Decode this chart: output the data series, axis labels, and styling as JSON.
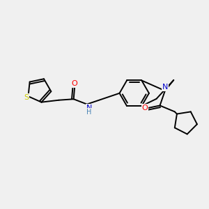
{
  "background_color": "#f0f0f0",
  "bond_color": "#000000",
  "atom_colors": {
    "O": "#ff0000",
    "N": "#0000cd",
    "S": "#cccc00",
    "H": "#4682b4",
    "C": "#000000"
  },
  "font_size": 8,
  "figsize": [
    3.0,
    3.0
  ],
  "dpi": 100
}
